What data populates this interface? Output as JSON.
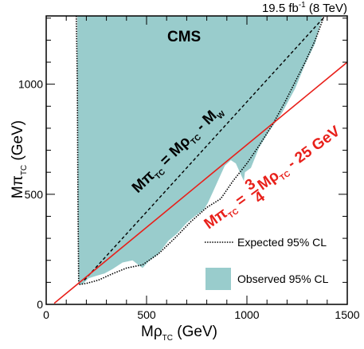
{
  "chart_data": {
    "type": "area",
    "lumi": {
      "pre": "19.5 fb",
      "sup": "-1",
      "post": " (8 TeV)"
    },
    "experiment": "CMS",
    "xlabel": {
      "main": "M",
      "greek": "ρ",
      "sub": "TC",
      "unit": " (GeV)"
    },
    "ylabel": {
      "main": "M",
      "greek": "π",
      "sub": "TC",
      "unit": " (GeV)"
    },
    "xlim": [
      0,
      1500
    ],
    "ylim": [
      0,
      1310
    ],
    "xticks": [
      {
        "v": 0,
        "label": "0"
      },
      {
        "v": 500,
        "label": "500"
      },
      {
        "v": 1000,
        "label": "1000"
      },
      {
        "v": 1500,
        "label": "1500"
      }
    ],
    "yticks": [
      {
        "v": 0,
        "label": "0"
      },
      {
        "v": 500,
        "label": "500"
      },
      {
        "v": 1000,
        "label": "1000"
      }
    ],
    "observed": {
      "name": "Observed 95% CL",
      "color": "#99cccc",
      "polygon": [
        [
          155,
          1310
        ],
        [
          1375,
          1310
        ],
        [
          1340,
          1185
        ],
        [
          1290,
          1090
        ],
        [
          1240,
          980
        ],
        [
          1175,
          870
        ],
        [
          1110,
          785
        ],
        [
          1060,
          710
        ],
        [
          1020,
          620
        ],
        [
          990,
          600
        ],
        [
          985,
          560
        ],
        [
          945,
          640
        ],
        [
          920,
          655
        ],
        [
          890,
          630
        ],
        [
          860,
          570
        ],
        [
          830,
          510
        ],
        [
          805,
          460
        ],
        [
          785,
          430
        ],
        [
          740,
          400
        ],
        [
          700,
          370
        ],
        [
          650,
          320
        ],
        [
          610,
          290
        ],
        [
          560,
          230
        ],
        [
          510,
          195
        ],
        [
          480,
          165
        ],
        [
          430,
          200
        ],
        [
          380,
          190
        ],
        [
          330,
          160
        ],
        [
          290,
          140
        ],
        [
          250,
          130
        ],
        [
          210,
          118
        ],
        [
          180,
          90
        ],
        [
          162,
          90
        ],
        [
          158,
          600
        ],
        [
          155,
          1100
        ]
      ]
    },
    "expected": {
      "name": "Expected 95% CL",
      "color": "#000000",
      "points": [
        [
          150,
          1310
        ],
        [
          155,
          1000
        ],
        [
          158,
          500
        ],
        [
          162,
          90
        ],
        [
          200,
          95
        ],
        [
          260,
          110
        ],
        [
          320,
          135
        ],
        [
          400,
          165
        ],
        [
          480,
          180
        ],
        [
          560,
          230
        ],
        [
          640,
          300
        ],
        [
          720,
          375
        ],
        [
          800,
          440
        ],
        [
          870,
          480
        ],
        [
          930,
          560
        ],
        [
          1000,
          640
        ],
        [
          1060,
          720
        ],
        [
          1130,
          820
        ],
        [
          1190,
          920
        ],
        [
          1240,
          1010
        ],
        [
          1290,
          1100
        ],
        [
          1340,
          1200
        ],
        [
          1385,
          1310
        ]
      ]
    },
    "lines": [
      {
        "kind": "dashed",
        "color": "#000000",
        "x1": 190,
        "x2": 1400,
        "slope": 1,
        "offset": -80
      },
      {
        "kind": "solid",
        "color": "#e8201a",
        "x1": 40,
        "x2": 1500,
        "slope": 0.75,
        "offset": -25
      }
    ],
    "annotations": [
      {
        "id": "annot-black",
        "color": "#000000",
        "lhs": {
          "main": "M",
          "greek": "π",
          "sub": "TC"
        },
        "eq": " = ",
        "rhs": {
          "main": "M",
          "greek": "ρ",
          "sub": "TC"
        },
        "tail": " - M",
        "tailsub": "W"
      },
      {
        "id": "annot-red",
        "color": "#e8201a",
        "lhs": {
          "main": "M",
          "greek": "π",
          "sub": "TC"
        },
        "eq": " = ",
        "num": "3",
        "den": "4",
        "rhs": {
          "main": "M",
          "greek": "ρ",
          "sub": "TC"
        },
        "tail": " - 25 GeV"
      }
    ]
  }
}
